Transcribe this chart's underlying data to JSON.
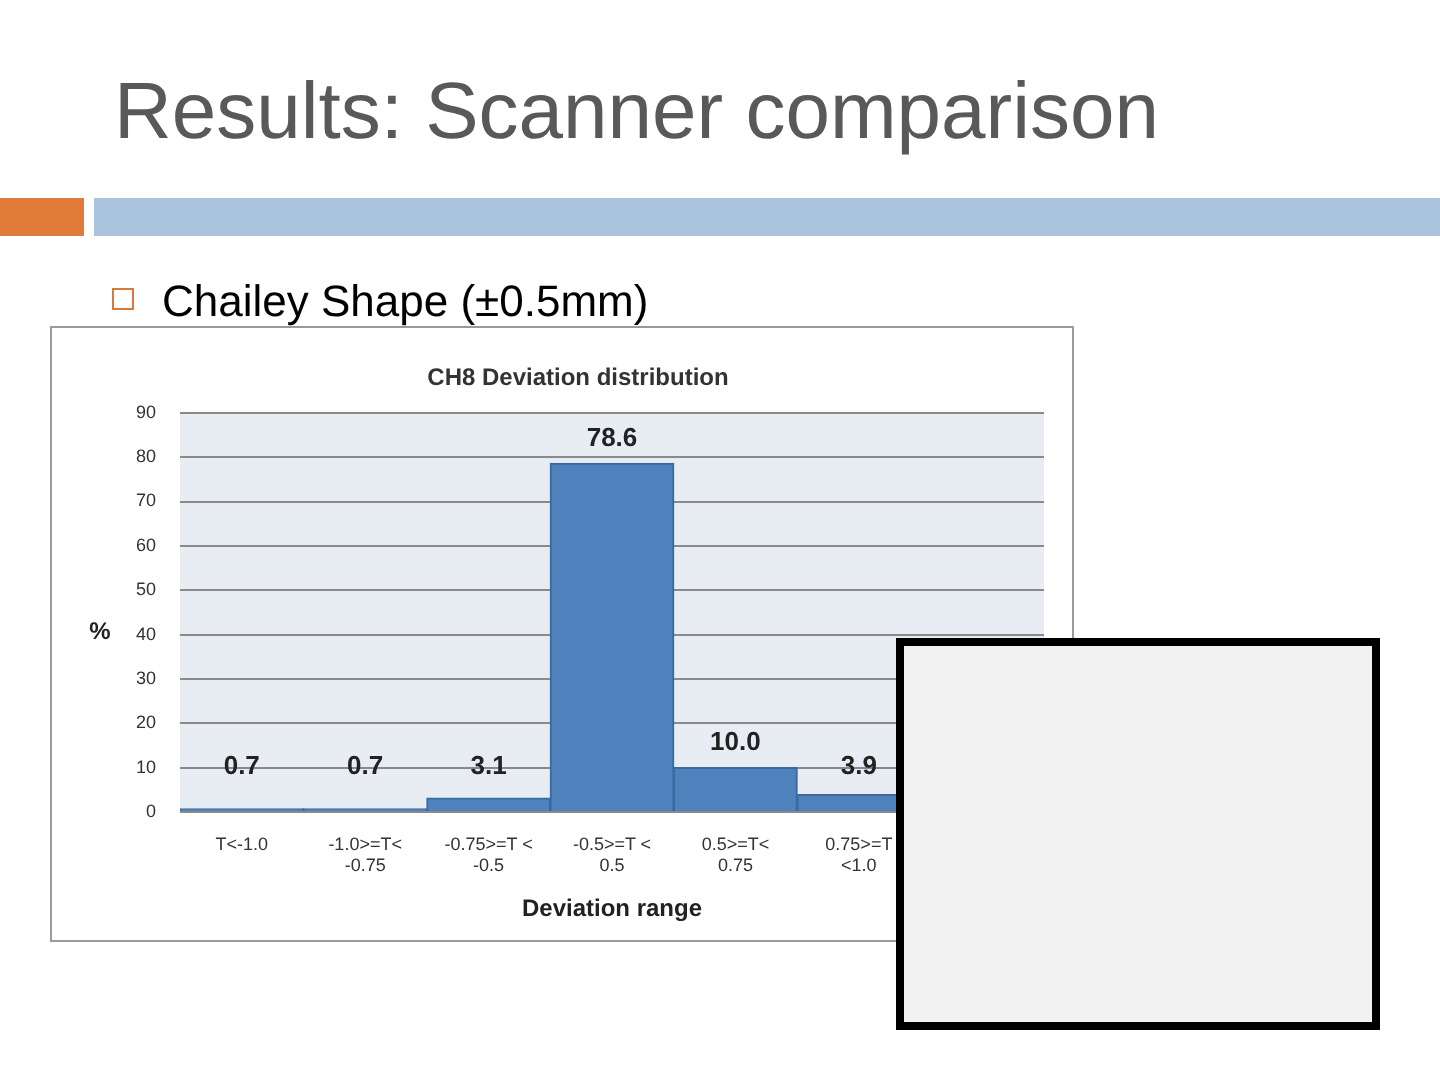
{
  "chart_data": {
    "type": "bar",
    "title": "CH8 Deviation distribution",
    "annotations": [
      "Results: Scanner comparison",
      "Chailey Shape (±0.5mm)"
    ],
    "xlabel": "Deviation range",
    "ylabel": "%",
    "categories": [
      "T<-1.0",
      "-1.0>=T< -0.75",
      "-0.75>=T < -0.5",
      "-0.5>=T < 0.5",
      "0.5>=T< 0.75",
      "0.75>=T <1.0",
      null
    ],
    "values": [
      0.7,
      0.7,
      3.1,
      78.6,
      10.0,
      3.9,
      null
    ],
    "value_labels": [
      "0.7",
      "0.7",
      "3.1",
      "78.6",
      "10.0",
      "3.9",
      null
    ],
    "color": "#4f81bd",
    "ylim": [
      0,
      90
    ],
    "yticks": [
      0,
      10,
      20,
      30,
      40,
      50,
      60,
      70,
      80,
      90
    ],
    "grid": "y"
  }
}
